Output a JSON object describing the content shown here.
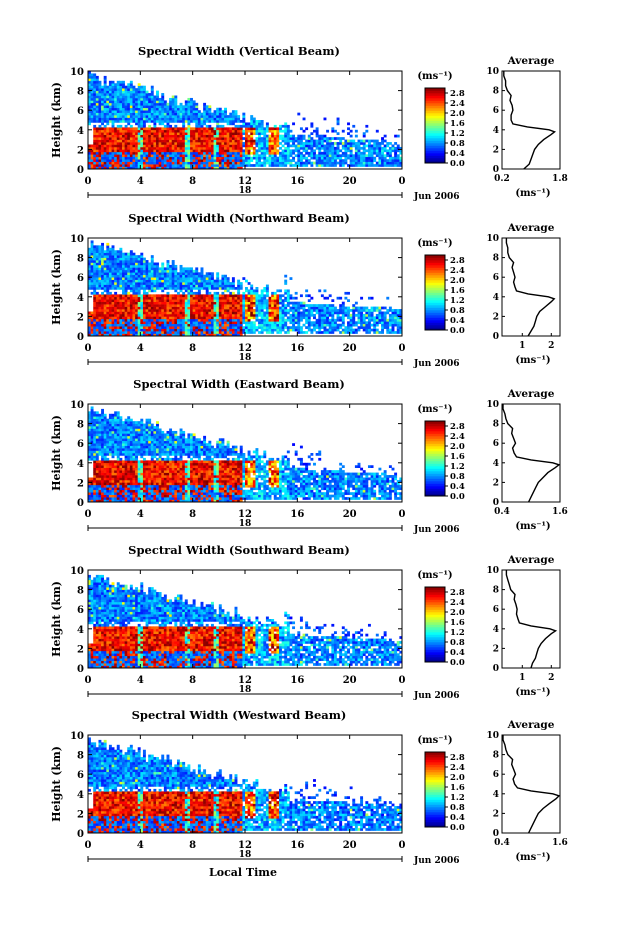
{
  "figure": {
    "shared_xlabel": "Local Time",
    "date_label": "Jun 2006",
    "day_label": "18",
    "ylabel": "Height (km)",
    "avg_title": "Average",
    "cbar_unit": "(ms⁻¹)",
    "avg_xlabel": "(ms⁻¹)"
  },
  "chart_data": [
    {
      "type": "heatmap",
      "title": "Spectral Width (Vertical Beam)",
      "xlabel": "",
      "ylabel": "Height (km)",
      "x_ticks": [
        "0",
        "4",
        "8",
        "12",
        "16",
        "20",
        "0"
      ],
      "y_ticks": [
        "0",
        "2",
        "4",
        "6",
        "8",
        "10"
      ],
      "xlim": [
        0,
        24
      ],
      "ylim": [
        0,
        10
      ],
      "colorbar": {
        "ticks": [
          "0.0",
          "0.4",
          "0.8",
          "1.2",
          "1.6",
          "2.0",
          "2.4",
          "2.8"
        ],
        "range": [
          0,
          3.0
        ]
      },
      "average_profile": {
        "x_ticks": [
          "0.2",
          "1.8"
        ],
        "xlim": [
          0.2,
          1.8
        ],
        "height": [
          0,
          0.5,
          1,
          1.5,
          2,
          2.5,
          3,
          3.5,
          3.8,
          4,
          4.3,
          4.6,
          5,
          5.5,
          6,
          6.5,
          7,
          7.5,
          8,
          8.5,
          9,
          9.5,
          10
        ],
        "width": [
          0.8,
          0.95,
          1.0,
          1.05,
          1.1,
          1.2,
          1.35,
          1.55,
          1.65,
          1.5,
          0.9,
          0.5,
          0.45,
          0.45,
          0.5,
          0.48,
          0.42,
          0.45,
          0.35,
          0.3,
          0.3,
          0.25,
          0.25
        ]
      }
    },
    {
      "type": "heatmap",
      "title": "Spectral Width (Northward Beam)",
      "xlabel": "",
      "ylabel": "Height (km)",
      "x_ticks": [
        "0",
        "4",
        "8",
        "12",
        "16",
        "20",
        "0"
      ],
      "y_ticks": [
        "0",
        "2",
        "4",
        "6",
        "8",
        "10"
      ],
      "xlim": [
        0,
        24
      ],
      "ylim": [
        0,
        10
      ],
      "colorbar": {
        "ticks": [
          "0.0",
          "0.4",
          "0.8",
          "1.2",
          "1.6",
          "2.0",
          "2.4",
          "2.8"
        ],
        "range": [
          0,
          3.0
        ]
      },
      "average_profile": {
        "x_ticks": [
          "1",
          "2"
        ],
        "xlim": [
          0.3,
          2.3
        ],
        "height": [
          0,
          0.5,
          1,
          1.5,
          2,
          2.5,
          3,
          3.5,
          3.8,
          4,
          4.3,
          4.6,
          5,
          5.5,
          6,
          6.5,
          7,
          7.5,
          8,
          8.5,
          9,
          9.5,
          10
        ],
        "width": [
          1.2,
          1.3,
          1.4,
          1.45,
          1.5,
          1.6,
          1.8,
          2.0,
          2.1,
          1.9,
          1.2,
          0.8,
          0.75,
          0.7,
          0.75,
          0.7,
          0.65,
          0.7,
          0.55,
          0.5,
          0.5,
          0.45,
          0.45
        ]
      }
    },
    {
      "type": "heatmap",
      "title": "Spectral Width (Eastward Beam)",
      "xlabel": "",
      "ylabel": "Height (km)",
      "x_ticks": [
        "0",
        "4",
        "8",
        "12",
        "16",
        "20",
        "0"
      ],
      "y_ticks": [
        "0",
        "2",
        "4",
        "6",
        "8",
        "10"
      ],
      "xlim": [
        0,
        24
      ],
      "ylim": [
        0,
        10
      ],
      "colorbar": {
        "ticks": [
          "0.0",
          "0.4",
          "0.8",
          "1.2",
          "1.6",
          "2.0",
          "2.4",
          "2.8"
        ],
        "range": [
          0,
          3.0
        ]
      },
      "average_profile": {
        "x_ticks": [
          "0.4",
          "1.6"
        ],
        "xlim": [
          0.4,
          1.6
        ],
        "height": [
          0,
          0.5,
          1,
          1.5,
          2,
          2.5,
          3,
          3.5,
          3.8,
          4,
          4.3,
          4.6,
          5,
          5.5,
          6,
          6.5,
          7,
          7.5,
          8,
          8.5,
          9,
          9.5,
          10
        ],
        "width": [
          0.95,
          1.0,
          1.05,
          1.1,
          1.15,
          1.25,
          1.35,
          1.5,
          1.58,
          1.45,
          1.0,
          0.7,
          0.65,
          0.62,
          0.68,
          0.64,
          0.6,
          0.62,
          0.52,
          0.48,
          0.46,
          0.42,
          0.42
        ]
      }
    },
    {
      "type": "heatmap",
      "title": "Spectral Width (Southward Beam)",
      "xlabel": "",
      "ylabel": "Height (km)",
      "x_ticks": [
        "0",
        "4",
        "8",
        "12",
        "16",
        "20",
        "0"
      ],
      "y_ticks": [
        "0",
        "2",
        "4",
        "6",
        "8",
        "10"
      ],
      "xlim": [
        0,
        24
      ],
      "ylim": [
        0,
        10
      ],
      "colorbar": {
        "ticks": [
          "0.0",
          "0.4",
          "0.8",
          "1.2",
          "1.6",
          "2.0",
          "2.4",
          "2.8"
        ],
        "range": [
          0,
          3.0
        ]
      },
      "average_profile": {
        "x_ticks": [
          "1",
          "2"
        ],
        "xlim": [
          0.3,
          2.3
        ],
        "height": [
          0,
          0.5,
          1,
          1.5,
          2,
          2.5,
          3,
          3.5,
          3.8,
          4,
          4.3,
          4.6,
          5,
          5.5,
          6,
          6.5,
          7,
          7.5,
          8,
          8.5,
          9,
          9.5,
          10
        ],
        "width": [
          1.3,
          1.35,
          1.45,
          1.5,
          1.55,
          1.65,
          1.8,
          2.0,
          2.15,
          1.95,
          1.3,
          0.9,
          0.85,
          0.8,
          0.82,
          0.78,
          0.72,
          0.75,
          0.6,
          0.55,
          0.5,
          0.45,
          0.45
        ]
      }
    },
    {
      "type": "heatmap",
      "title": "Spectral Width (Westward Beam)",
      "xlabel": "Local Time",
      "ylabel": "Height (km)",
      "x_ticks": [
        "0",
        "4",
        "8",
        "12",
        "16",
        "20",
        "0"
      ],
      "y_ticks": [
        "0",
        "2",
        "4",
        "6",
        "8",
        "10"
      ],
      "xlim": [
        0,
        24
      ],
      "ylim": [
        0,
        10
      ],
      "colorbar": {
        "ticks": [
          "0.0",
          "0.4",
          "0.8",
          "1.2",
          "1.6",
          "2.0",
          "2.4",
          "2.8"
        ],
        "range": [
          0,
          3.0
        ]
      },
      "average_profile": {
        "x_ticks": [
          "0.4",
          "1.6"
        ],
        "xlim": [
          0.4,
          1.6
        ],
        "height": [
          0,
          0.5,
          1,
          1.5,
          2,
          2.5,
          3,
          3.5,
          3.8,
          4,
          4.3,
          4.6,
          5,
          5.5,
          6,
          6.5,
          7,
          7.5,
          8,
          8.5,
          9,
          9.5,
          10
        ],
        "width": [
          0.95,
          1.0,
          1.05,
          1.1,
          1.15,
          1.25,
          1.38,
          1.52,
          1.58,
          1.45,
          1.0,
          0.72,
          0.66,
          0.63,
          0.68,
          0.64,
          0.6,
          0.62,
          0.52,
          0.48,
          0.46,
          0.42,
          0.42
        ]
      }
    }
  ]
}
